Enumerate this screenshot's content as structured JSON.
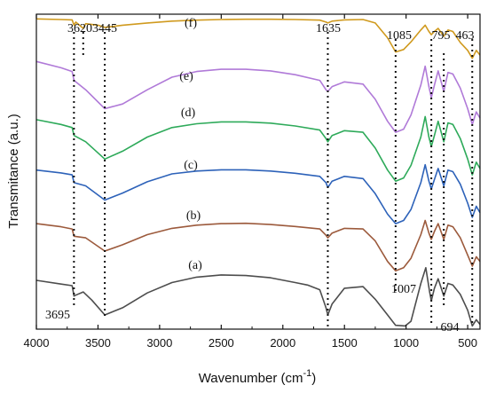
{
  "chart_data": {
    "type": "line",
    "xlabel": "Wavenumber (cm",
    "xlabel_sup": "-1",
    "xlabel_close": ")",
    "ylabel": "Transmitance (a.u.)",
    "xlim": [
      4000,
      400
    ],
    "x_reversed": true,
    "x_ticks": [
      4000,
      3500,
      3000,
      2500,
      2000,
      1500,
      1000,
      500
    ],
    "y_ticks_shown": false,
    "grid": false,
    "series": [
      {
        "label": "(a)",
        "color": "#4d4d4d",
        "points": [
          [
            4000,
            0.155
          ],
          [
            3800,
            0.143
          ],
          [
            3710,
            0.138
          ],
          [
            3695,
            0.105
          ],
          [
            3680,
            0.108
          ],
          [
            3620,
            0.118
          ],
          [
            3550,
            0.092
          ],
          [
            3445,
            0.045
          ],
          [
            3300,
            0.068
          ],
          [
            3100,
            0.115
          ],
          [
            2900,
            0.148
          ],
          [
            2700,
            0.165
          ],
          [
            2500,
            0.172
          ],
          [
            2300,
            0.17
          ],
          [
            2100,
            0.163
          ],
          [
            1900,
            0.148
          ],
          [
            1800,
            0.14
          ],
          [
            1700,
            0.125
          ],
          [
            1650,
            0.068
          ],
          [
            1635,
            0.045
          ],
          [
            1600,
            0.08
          ],
          [
            1500,
            0.13
          ],
          [
            1350,
            0.135
          ],
          [
            1250,
            0.095
          ],
          [
            1150,
            0.045
          ],
          [
            1085,
            0.012
          ],
          [
            1007,
            0.01
          ],
          [
            960,
            0.025
          ],
          [
            880,
            0.145
          ],
          [
            840,
            0.195
          ],
          [
            810,
            0.12
          ],
          [
            795,
            0.09
          ],
          [
            770,
            0.13
          ],
          [
            740,
            0.16
          ],
          [
            694,
            0.105
          ],
          [
            660,
            0.145
          ],
          [
            620,
            0.14
          ],
          [
            560,
            0.11
          ],
          [
            500,
            0.06
          ],
          [
            463,
            0.01
          ],
          [
            430,
            0.03
          ],
          [
            400,
            0.015
          ]
        ]
      },
      {
        "label": "(b)",
        "color": "#9c5a3c",
        "points": [
          [
            4000,
            0.335
          ],
          [
            3800,
            0.325
          ],
          [
            3710,
            0.318
          ],
          [
            3695,
            0.295
          ],
          [
            3600,
            0.29
          ],
          [
            3445,
            0.248
          ],
          [
            3300,
            0.268
          ],
          [
            3100,
            0.3
          ],
          [
            2900,
            0.32
          ],
          [
            2700,
            0.33
          ],
          [
            2500,
            0.335
          ],
          [
            2300,
            0.336
          ],
          [
            2100,
            0.332
          ],
          [
            1900,
            0.326
          ],
          [
            1700,
            0.318
          ],
          [
            1650,
            0.298
          ],
          [
            1635,
            0.29
          ],
          [
            1600,
            0.305
          ],
          [
            1500,
            0.32
          ],
          [
            1350,
            0.318
          ],
          [
            1250,
            0.28
          ],
          [
            1150,
            0.215
          ],
          [
            1085,
            0.185
          ],
          [
            1020,
            0.195
          ],
          [
            960,
            0.225
          ],
          [
            880,
            0.3
          ],
          [
            845,
            0.345
          ],
          [
            815,
            0.305
          ],
          [
            795,
            0.285
          ],
          [
            770,
            0.31
          ],
          [
            740,
            0.335
          ],
          [
            694,
            0.285
          ],
          [
            660,
            0.33
          ],
          [
            620,
            0.325
          ],
          [
            560,
            0.29
          ],
          [
            500,
            0.235
          ],
          [
            463,
            0.2
          ],
          [
            430,
            0.23
          ],
          [
            400,
            0.215
          ]
        ]
      },
      {
        "label": "(c)",
        "color": "#2d62b9",
        "points": [
          [
            4000,
            0.505
          ],
          [
            3800,
            0.496
          ],
          [
            3710,
            0.49
          ],
          [
            3695,
            0.465
          ],
          [
            3600,
            0.455
          ],
          [
            3445,
            0.41
          ],
          [
            3300,
            0.432
          ],
          [
            3100,
            0.468
          ],
          [
            2900,
            0.493
          ],
          [
            2700,
            0.502
          ],
          [
            2500,
            0.506
          ],
          [
            2300,
            0.506
          ],
          [
            2100,
            0.502
          ],
          [
            1900,
            0.495
          ],
          [
            1700,
            0.485
          ],
          [
            1650,
            0.465
          ],
          [
            1635,
            0.45
          ],
          [
            1600,
            0.47
          ],
          [
            1500,
            0.485
          ],
          [
            1350,
            0.478
          ],
          [
            1250,
            0.43
          ],
          [
            1150,
            0.365
          ],
          [
            1085,
            0.335
          ],
          [
            1020,
            0.345
          ],
          [
            960,
            0.38
          ],
          [
            880,
            0.465
          ],
          [
            845,
            0.522
          ],
          [
            815,
            0.47
          ],
          [
            795,
            0.445
          ],
          [
            770,
            0.475
          ],
          [
            740,
            0.51
          ],
          [
            694,
            0.455
          ],
          [
            660,
            0.505
          ],
          [
            620,
            0.5
          ],
          [
            560,
            0.46
          ],
          [
            500,
            0.4
          ],
          [
            463,
            0.355
          ],
          [
            430,
            0.39
          ],
          [
            400,
            0.37
          ]
        ]
      },
      {
        "label": "(d)",
        "color": "#2eaa5a",
        "points": [
          [
            4000,
            0.665
          ],
          [
            3800,
            0.65
          ],
          [
            3710,
            0.64
          ],
          [
            3695,
            0.615
          ],
          [
            3600,
            0.595
          ],
          [
            3445,
            0.54
          ],
          [
            3300,
            0.565
          ],
          [
            3100,
            0.61
          ],
          [
            2900,
            0.64
          ],
          [
            2700,
            0.652
          ],
          [
            2500,
            0.658
          ],
          [
            2300,
            0.658
          ],
          [
            2100,
            0.654
          ],
          [
            1900,
            0.645
          ],
          [
            1700,
            0.632
          ],
          [
            1650,
            0.605
          ],
          [
            1635,
            0.595
          ],
          [
            1600,
            0.615
          ],
          [
            1500,
            0.63
          ],
          [
            1350,
            0.625
          ],
          [
            1250,
            0.575
          ],
          [
            1150,
            0.505
          ],
          [
            1085,
            0.47
          ],
          [
            1020,
            0.48
          ],
          [
            960,
            0.52
          ],
          [
            880,
            0.61
          ],
          [
            845,
            0.675
          ],
          [
            815,
            0.61
          ],
          [
            795,
            0.58
          ],
          [
            770,
            0.615
          ],
          [
            740,
            0.66
          ],
          [
            694,
            0.595
          ],
          [
            660,
            0.655
          ],
          [
            620,
            0.65
          ],
          [
            560,
            0.605
          ],
          [
            500,
            0.54
          ],
          [
            463,
            0.49
          ],
          [
            430,
            0.53
          ],
          [
            400,
            0.51
          ]
        ]
      },
      {
        "label": "(e)",
        "color": "#b07ad8",
        "points": [
          [
            4000,
            0.85
          ],
          [
            3800,
            0.83
          ],
          [
            3710,
            0.818
          ],
          [
            3695,
            0.79
          ],
          [
            3600,
            0.76
          ],
          [
            3445,
            0.7
          ],
          [
            3300,
            0.715
          ],
          [
            3100,
            0.76
          ],
          [
            2900,
            0.8
          ],
          [
            2700,
            0.818
          ],
          [
            2500,
            0.825
          ],
          [
            2300,
            0.825
          ],
          [
            2100,
            0.82
          ],
          [
            1900,
            0.808
          ],
          [
            1700,
            0.79
          ],
          [
            1650,
            0.76
          ],
          [
            1635,
            0.755
          ],
          [
            1600,
            0.77
          ],
          [
            1500,
            0.785
          ],
          [
            1350,
            0.778
          ],
          [
            1250,
            0.73
          ],
          [
            1150,
            0.66
          ],
          [
            1085,
            0.625
          ],
          [
            1020,
            0.635
          ],
          [
            960,
            0.68
          ],
          [
            880,
            0.775
          ],
          [
            845,
            0.835
          ],
          [
            815,
            0.77
          ],
          [
            795,
            0.735
          ],
          [
            770,
            0.775
          ],
          [
            740,
            0.82
          ],
          [
            694,
            0.755
          ],
          [
            660,
            0.815
          ],
          [
            620,
            0.81
          ],
          [
            560,
            0.765
          ],
          [
            500,
            0.7
          ],
          [
            463,
            0.65
          ],
          [
            430,
            0.69
          ],
          [
            400,
            0.67
          ]
        ]
      },
      {
        "label": "(f)",
        "color": "#d09a1e",
        "points": [
          [
            4000,
            0.985
          ],
          [
            3800,
            0.983
          ],
          [
            3710,
            0.982
          ],
          [
            3695,
            0.965
          ],
          [
            3680,
            0.975
          ],
          [
            3620,
            0.955
          ],
          [
            3600,
            0.97
          ],
          [
            3500,
            0.965
          ],
          [
            3445,
            0.958
          ],
          [
            3300,
            0.965
          ],
          [
            3100,
            0.972
          ],
          [
            2900,
            0.978
          ],
          [
            2700,
            0.981
          ],
          [
            2500,
            0.983
          ],
          [
            2300,
            0.984
          ],
          [
            2100,
            0.984
          ],
          [
            1900,
            0.983
          ],
          [
            1700,
            0.981
          ],
          [
            1650,
            0.975
          ],
          [
            1635,
            0.972
          ],
          [
            1600,
            0.978
          ],
          [
            1500,
            0.982
          ],
          [
            1350,
            0.983
          ],
          [
            1250,
            0.972
          ],
          [
            1150,
            0.925
          ],
          [
            1085,
            0.88
          ],
          [
            1020,
            0.888
          ],
          [
            960,
            0.912
          ],
          [
            880,
            0.95
          ],
          [
            845,
            0.965
          ],
          [
            815,
            0.945
          ],
          [
            795,
            0.935
          ],
          [
            770,
            0.945
          ],
          [
            740,
            0.955
          ],
          [
            694,
            0.93
          ],
          [
            660,
            0.95
          ],
          [
            620,
            0.945
          ],
          [
            560,
            0.91
          ],
          [
            500,
            0.885
          ],
          [
            463,
            0.86
          ],
          [
            430,
            0.885
          ],
          [
            400,
            0.87
          ]
        ]
      }
    ],
    "reference_lines": [
      3695,
      3620,
      3445,
      1635,
      1085,
      795,
      694,
      463
    ],
    "annotations": [
      "3620",
      "3445",
      "1635",
      "1085",
      "795",
      "463",
      "3695",
      "1007",
      "694"
    ]
  }
}
